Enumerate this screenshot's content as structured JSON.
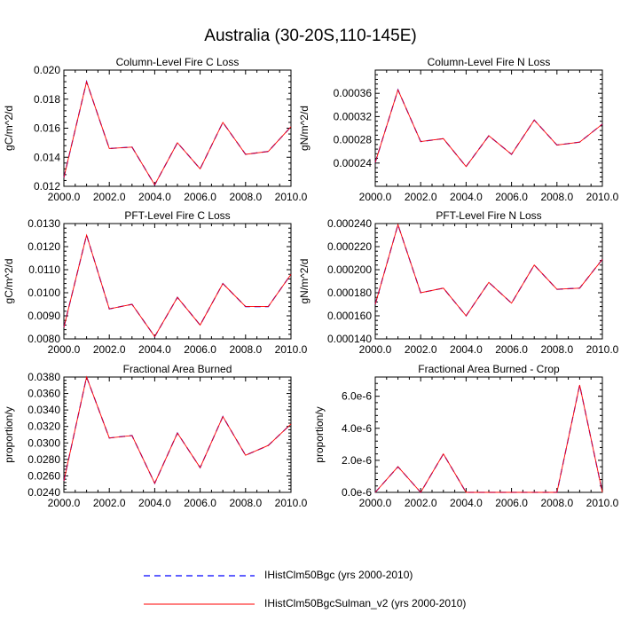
{
  "page_title": "Australia (30-20S,110-145E)",
  "colors": {
    "series_a": "#0000ff",
    "series_b": "#ff0000",
    "axis": "#000000"
  },
  "legend": [
    {
      "label": "IHistClm50Bgc (yrs 2000-2010)",
      "color": "#0000ff",
      "dash": "dashed"
    },
    {
      "label": "IHistClm50BgcSulman_v2 (yrs 2000-2010)",
      "color": "#ff0000",
      "dash": "solid"
    }
  ],
  "chart_data": [
    {
      "type": "line",
      "title": "Column-Level Fire C Loss",
      "ylabel": "gC/m^2/d",
      "xlim": [
        2000,
        2010
      ],
      "ylim": [
        0.012,
        0.02
      ],
      "xticks": [
        "2000.0",
        "2002.0",
        "2004.0",
        "2006.0",
        "2008.0",
        "2010.0"
      ],
      "yticks": [
        0.012,
        0.014,
        0.016,
        0.018,
        0.02
      ],
      "yticklabels": [
        "0.012",
        "0.014",
        "0.016",
        "0.018",
        "0.020"
      ],
      "x": [
        2000,
        2001,
        2002,
        2003,
        2004,
        2005,
        2006,
        2007,
        2008,
        2009,
        2010
      ],
      "series": [
        {
          "name": "IHistClm50Bgc (yrs 2000-2010)",
          "values": [
            0.0126,
            0.0192,
            0.0146,
            0.0147,
            0.0121,
            0.015,
            0.0132,
            0.0164,
            0.0142,
            0.0144,
            0.0161
          ]
        },
        {
          "name": "IHistClm50BgcSulman_v2 (yrs 2000-2010)",
          "values": [
            0.0126,
            0.0192,
            0.0146,
            0.0147,
            0.0121,
            0.015,
            0.0132,
            0.0164,
            0.0142,
            0.0144,
            0.0161
          ]
        }
      ]
    },
    {
      "type": "line",
      "title": "Column-Level Fire N Loss",
      "ylabel": "gN/m^2/d",
      "xlim": [
        2000,
        2010
      ],
      "ylim": [
        0.0002,
        0.0004
      ],
      "xticks": [
        "2000.0",
        "2002.0",
        "2004.0",
        "2006.0",
        "2008.0",
        "2010.0"
      ],
      "yticks": [
        0.00024,
        0.00028,
        0.00032,
        0.00036
      ],
      "yticklabels": [
        "0.00024",
        "0.00028",
        "0.00032",
        "0.00036"
      ],
      "x": [
        2000,
        2001,
        2002,
        2003,
        2004,
        2005,
        2006,
        2007,
        2008,
        2009,
        2010
      ],
      "series": [
        {
          "name": "IHistClm50Bgc (yrs 2000-2010)",
          "values": [
            0.000241,
            0.000366,
            0.000277,
            0.000282,
            0.000234,
            0.000287,
            0.000255,
            0.000314,
            0.000271,
            0.000276,
            0.000307
          ]
        },
        {
          "name": "IHistClm50BgcSulman_v2 (yrs 2000-2010)",
          "values": [
            0.000241,
            0.000366,
            0.000277,
            0.000282,
            0.000234,
            0.000287,
            0.000255,
            0.000314,
            0.000271,
            0.000276,
            0.000307
          ]
        }
      ]
    },
    {
      "type": "line",
      "title": "PFT-Level Fire C Loss",
      "ylabel": "gC/m^2/d",
      "xlim": [
        2000,
        2010
      ],
      "ylim": [
        0.008,
        0.013
      ],
      "xticks": [
        "2000.0",
        "2002.0",
        "2004.0",
        "2006.0",
        "2008.0",
        "2010.0"
      ],
      "yticks": [
        0.008,
        0.009,
        0.01,
        0.011,
        0.012,
        0.013
      ],
      "yticklabels": [
        "0.0080",
        "0.0090",
        "0.0100",
        "0.0110",
        "0.0120",
        "0.0130"
      ],
      "x": [
        2000,
        2001,
        2002,
        2003,
        2004,
        2005,
        2006,
        2007,
        2008,
        2009,
        2010
      ],
      "series": [
        {
          "name": "IHistClm50Bgc (yrs 2000-2010)",
          "values": [
            0.0085,
            0.0125,
            0.0093,
            0.0095,
            0.0081,
            0.0098,
            0.0086,
            0.0104,
            0.0094,
            0.0094,
            0.0108
          ]
        },
        {
          "name": "IHistClm50BgcSulman_v2 (yrs 2000-2010)",
          "values": [
            0.0085,
            0.0125,
            0.0093,
            0.0095,
            0.0081,
            0.0098,
            0.0086,
            0.0104,
            0.0094,
            0.0094,
            0.0108
          ]
        }
      ]
    },
    {
      "type": "line",
      "title": "PFT-Level Fire N Loss",
      "ylabel": "gN/m^2/d",
      "xlim": [
        2000,
        2010
      ],
      "ylim": [
        0.00014,
        0.00024
      ],
      "xticks": [
        "2000.0",
        "2002.0",
        "2004.0",
        "2006.0",
        "2008.0",
        "2010.0"
      ],
      "yticks": [
        0.00014,
        0.00016,
        0.00018,
        0.0002,
        0.00022,
        0.00024
      ],
      "yticklabels": [
        "0.000140",
        "0.000160",
        "0.000180",
        "0.000200",
        "0.000220",
        "0.000240"
      ],
      "x": [
        2000,
        2001,
        2002,
        2003,
        2004,
        2005,
        2006,
        2007,
        2008,
        2009,
        2010
      ],
      "series": [
        {
          "name": "IHistClm50Bgc (yrs 2000-2010)",
          "values": [
            0.00017,
            0.000239,
            0.00018,
            0.000184,
            0.00016,
            0.000189,
            0.000171,
            0.000204,
            0.000183,
            0.000184,
            0.000209
          ]
        },
        {
          "name": "IHistClm50BgcSulman_v2 (yrs 2000-2010)",
          "values": [
            0.00017,
            0.000239,
            0.00018,
            0.000184,
            0.00016,
            0.000189,
            0.000171,
            0.000204,
            0.000183,
            0.000184,
            0.000209
          ]
        }
      ]
    },
    {
      "type": "line",
      "title": "Fractional Area Burned",
      "ylabel": "proportion/y",
      "xlim": [
        2000,
        2010
      ],
      "ylim": [
        0.024,
        0.038
      ],
      "xticks": [
        "2000.0",
        "2002.0",
        "2004.0",
        "2006.0",
        "2008.0",
        "2010.0"
      ],
      "yticks": [
        0.024,
        0.026,
        0.028,
        0.03,
        0.032,
        0.034,
        0.036,
        0.038
      ],
      "yticklabels": [
        "0.0240",
        "0.0260",
        "0.0280",
        "0.0300",
        "0.0320",
        "0.0340",
        "0.0360",
        "0.0380"
      ],
      "x": [
        2000,
        2001,
        2002,
        2003,
        2004,
        2005,
        2006,
        2007,
        2008,
        2009,
        2010
      ],
      "series": [
        {
          "name": "IHistClm50Bgc (yrs 2000-2010)",
          "values": [
            0.0254,
            0.038,
            0.0306,
            0.0309,
            0.0251,
            0.0312,
            0.027,
            0.0332,
            0.0285,
            0.0297,
            0.0323
          ]
        },
        {
          "name": "IHistClm50BgcSulman_v2 (yrs 2000-2010)",
          "values": [
            0.0254,
            0.038,
            0.0306,
            0.0309,
            0.0251,
            0.0312,
            0.027,
            0.0332,
            0.0285,
            0.0297,
            0.0323
          ]
        }
      ]
    },
    {
      "type": "line",
      "title": "Fractional Area Burned - Crop",
      "ylabel": "proportion/y",
      "xlim": [
        2000,
        2010
      ],
      "ylim": [
        0,
        7.2e-06
      ],
      "xticks": [
        "2000.0",
        "2002.0",
        "2004.0",
        "2006.0",
        "2008.0",
        "2010.0"
      ],
      "yticks": [
        0,
        2e-06,
        4e-06,
        6e-06
      ],
      "yticklabels": [
        "0.0e-6",
        "2.0e-6",
        "4.0e-6",
        "6.0e-6"
      ],
      "x": [
        2000,
        2001,
        2002,
        2003,
        2004,
        2005,
        2006,
        2007,
        2008,
        2009,
        2010
      ],
      "series": [
        {
          "name": "IHistClm50Bgc (yrs 2000-2010)",
          "values": [
            0,
            1.6e-06,
            0,
            2.4e-06,
            0,
            0,
            0,
            0,
            0,
            6.7e-06,
            0
          ]
        },
        {
          "name": "IHistClm50BgcSulman_v2 (yrs 2000-2010)",
          "values": [
            0,
            1.6e-06,
            0,
            2.4e-06,
            0,
            0,
            0,
            0,
            0,
            6.7e-06,
            0
          ]
        }
      ]
    }
  ]
}
